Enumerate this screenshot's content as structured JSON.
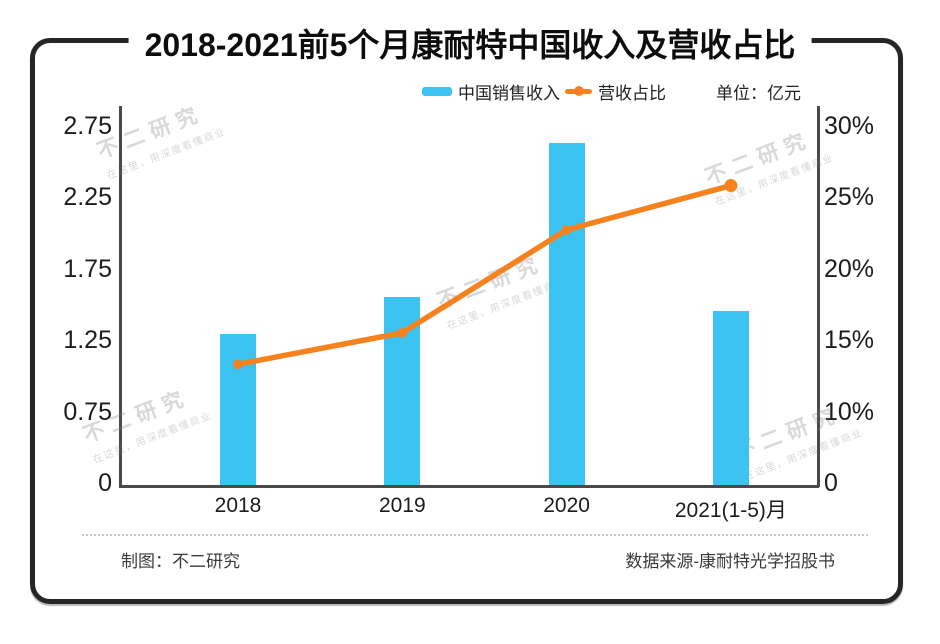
{
  "title": "2018-2021前5个月康耐特中国收入及营收占比",
  "legend": {
    "sales_label": "中国销售收入",
    "ratio_label": "营收占比",
    "unit_label": "单位：亿元"
  },
  "footer": {
    "credit": "制图：不二研究",
    "source": "数据来源-康耐特光学招股书"
  },
  "watermark": {
    "main": "不二研究",
    "sub": "在这里，用深度看懂商业"
  },
  "colors": {
    "bar": "#3DC3F2",
    "line": "#F5821F",
    "frame": "#262626",
    "axis": "#4A4A4A",
    "text": "#1C1C1C",
    "watermark": "rgba(125,125,125,0.30)"
  },
  "chart_data": {
    "type": "bar",
    "subtype": "bar+line combo, dual axis",
    "categories": [
      "2018",
      "2019",
      "2020",
      "2021(1-5)月"
    ],
    "series": [
      {
        "name": "中国销售收入",
        "type": "bar",
        "axis": "left",
        "unit": "亿元",
        "values": [
          1.29,
          1.55,
          2.63,
          1.45
        ]
      },
      {
        "name": "营收占比",
        "type": "line",
        "axis": "right",
        "unit": "%",
        "values": [
          13.3,
          15.5,
          22.7,
          25.8
        ]
      }
    ],
    "left_axis": {
      "tick_values": [
        0,
        0.75,
        1.25,
        1.75,
        2.25,
        2.75
      ],
      "tick_labels": [
        "0",
        "0.75",
        "1.25",
        "1.75",
        "2.25",
        "2.75"
      ],
      "note": "ticks evenly spaced (non-linear scale)"
    },
    "right_axis": {
      "tick_values": [
        0,
        10,
        15,
        20,
        25,
        30
      ],
      "tick_labels": [
        "0",
        "10%",
        "15%",
        "20%",
        "25%",
        "30%"
      ],
      "note": "ticks evenly spaced (non-linear scale)"
    },
    "grid": false,
    "legend_position": "top"
  }
}
